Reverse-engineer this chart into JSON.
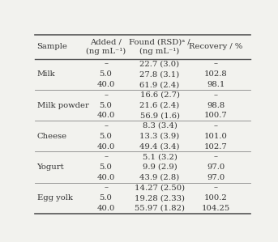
{
  "col_headers": [
    "Sample",
    "Added /\n(ng mL⁻¹)",
    "Found (RSD)ᵃ /\n(ng mL⁻¹)",
    "Recovery / %"
  ],
  "rows": [
    [
      "",
      "–",
      "22.7 (3.0)",
      "–"
    ],
    [
      "Milk",
      "5.0",
      "27.8 (3.1)",
      "102.8"
    ],
    [
      "",
      "40.0",
      "61.9 (2.4)",
      "98.1"
    ],
    [
      "",
      "–",
      "16.6 (2.7)",
      "–"
    ],
    [
      "Milk powder",
      "5.0",
      "21.6 (2.4)",
      "98.8"
    ],
    [
      "",
      "40.0",
      "56.9 (1.6)",
      "100.7"
    ],
    [
      "",
      "–",
      "8.3 (3.4)",
      "–"
    ],
    [
      "Cheese",
      "5.0",
      "13.3 (3.9)",
      "101.0"
    ],
    [
      "",
      "40.0",
      "49.4 (3.4)",
      "102.7"
    ],
    [
      "",
      "–",
      "5.1 (3.2)",
      "–"
    ],
    [
      "Yogurt",
      "5.0",
      "9.9 (2.9)",
      "97.0"
    ],
    [
      "",
      "40.0",
      "43.9 (2.8)",
      "97.0"
    ],
    [
      "",
      "–",
      "14.27 (2.50)",
      "–"
    ],
    [
      "Egg yolk",
      "5.0",
      "19.28 (2.33)",
      "100.2"
    ],
    [
      "",
      "40.0",
      "55.97 (1.82)",
      "104.25"
    ]
  ],
  "group_separators": [
    3,
    6,
    9,
    12
  ],
  "bg_color": "#f2f2ee",
  "text_color": "#333333",
  "font_size": 7.2,
  "header_font_size": 7.2
}
